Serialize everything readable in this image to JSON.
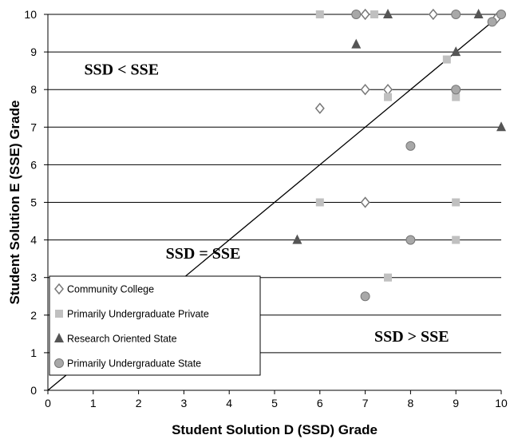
{
  "chart_data": {
    "type": "scatter",
    "xlabel": "Student Solution D (SSD) Grade",
    "ylabel": "Student Solution E (SSE) Grade",
    "xlim": [
      0,
      10
    ],
    "ylim": [
      0,
      10
    ],
    "xticks": [
      "0",
      "1",
      "2",
      "3",
      "4",
      "5",
      "6",
      "7",
      "8",
      "9",
      "10"
    ],
    "yticks": [
      "0",
      "1",
      "2",
      "3",
      "4",
      "5",
      "6",
      "7",
      "8",
      "9",
      "10"
    ],
    "grid": "horizontal",
    "legend_position": "bottom-left",
    "reference_line": {
      "label": "SSD = SSE",
      "slope": 1,
      "intercept": 0
    },
    "annotations": [
      {
        "text": "SSD < SSE",
        "x": 0.8,
        "y": 8.4
      },
      {
        "text": "SSD = SSE",
        "x": 2.6,
        "y": 3.5
      },
      {
        "text": "SSD > SSE",
        "x": 7.2,
        "y": 1.3
      }
    ],
    "series": [
      {
        "name": "Community College",
        "marker": "diamond",
        "color": "#808080",
        "points": [
          [
            6,
            7.5
          ],
          [
            7,
            10
          ],
          [
            7,
            8
          ],
          [
            7.5,
            8
          ],
          [
            7,
            5
          ],
          [
            8.5,
            10
          ],
          [
            9.9,
            9.9
          ]
        ]
      },
      {
        "name": "Primarily Undergraduate Private",
        "marker": "square",
        "color": "#c0c0c0",
        "points": [
          [
            6,
            10
          ],
          [
            7.2,
            10
          ],
          [
            7.5,
            7.8
          ],
          [
            8.8,
            8.8
          ],
          [
            9,
            7.8
          ],
          [
            6,
            5
          ],
          [
            9,
            5
          ],
          [
            9,
            4
          ],
          [
            7.5,
            3
          ]
        ]
      },
      {
        "name": "Research Oriented State",
        "marker": "triangle",
        "color": "#555555",
        "points": [
          [
            7.5,
            10
          ],
          [
            9.5,
            10
          ],
          [
            6.8,
            9.2
          ],
          [
            9,
            9
          ],
          [
            10,
            7
          ],
          [
            5.5,
            4
          ]
        ]
      },
      {
        "name": "Primarily Undergraduate State",
        "marker": "circle",
        "color": "#a8a8a8",
        "points": [
          [
            6.8,
            10
          ],
          [
            9,
            10
          ],
          [
            10,
            10
          ],
          [
            9.8,
            9.8
          ],
          [
            9,
            8
          ],
          [
            8,
            6.5
          ],
          [
            8,
            4
          ],
          [
            7,
            2.5
          ]
        ]
      }
    ]
  }
}
